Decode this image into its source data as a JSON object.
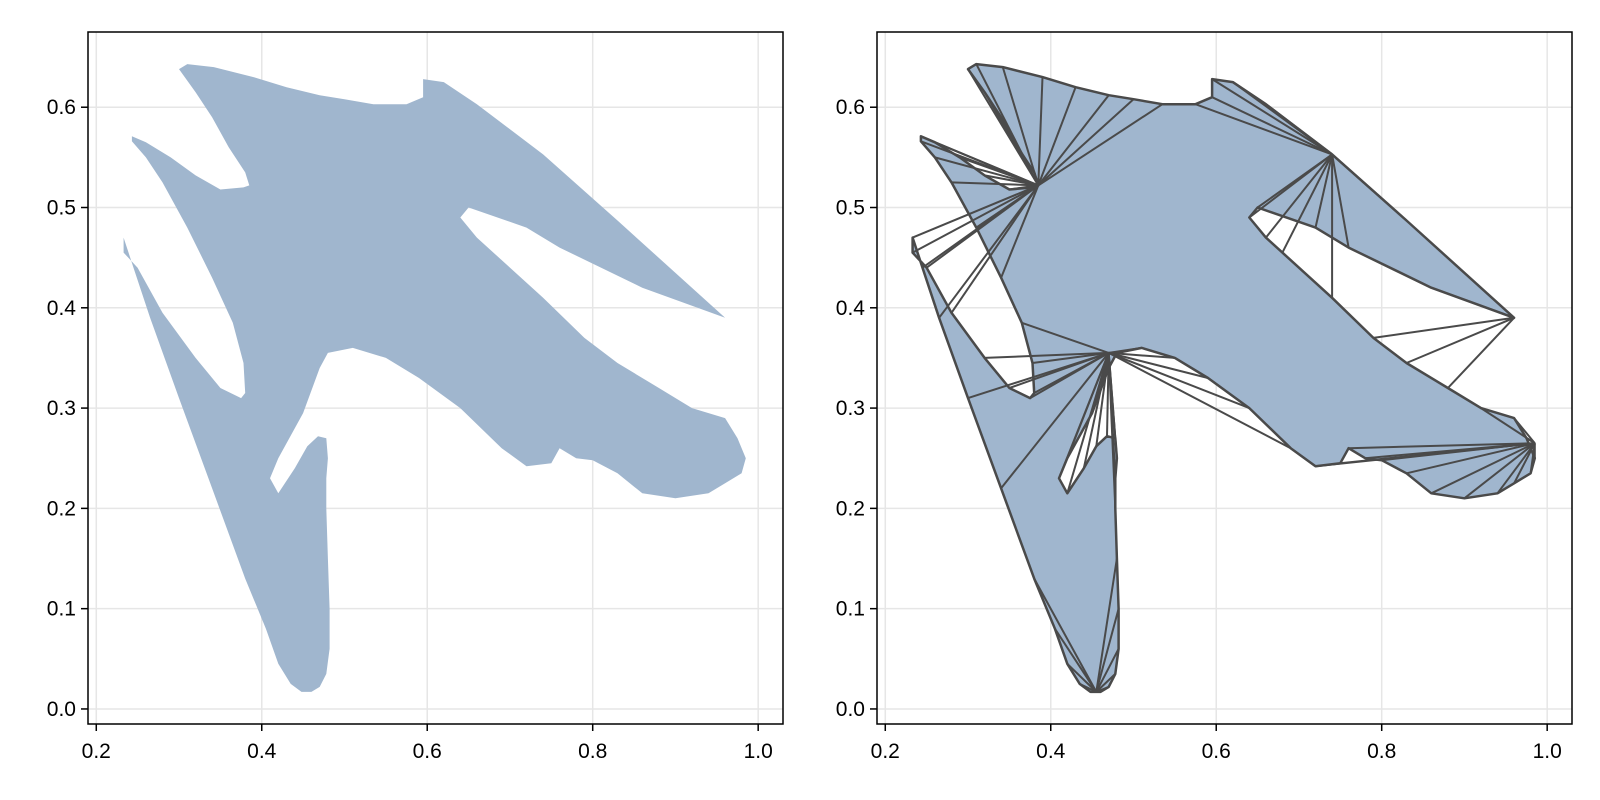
{
  "colors": {
    "fill": "#a0b6ce",
    "edge": "#4a4a4a",
    "grid": "#e6e6e6",
    "frame": "#000000"
  },
  "chart_data": [
    {
      "type": "area",
      "title": "",
      "xlabel": "",
      "ylabel": "",
      "xlim": [
        0.19,
        1.03
      ],
      "ylim": [
        -0.015,
        0.675
      ],
      "xticks": [
        0.2,
        0.4,
        0.6,
        0.8,
        1.0
      ],
      "xtick_labels": [
        "0.2",
        "0.4",
        "0.6",
        "0.8",
        "1.0"
      ],
      "yticks": [
        0.0,
        0.1,
        0.2,
        0.3,
        0.4,
        0.5,
        0.6
      ],
      "ytick_labels": [
        "0.0",
        "0.1",
        "0.2",
        "0.3",
        "0.4",
        "0.5",
        "0.6"
      ],
      "grid": true,
      "show_edges": false,
      "polygon": [
        [
          0.3,
          0.638
        ],
        [
          0.31,
          0.643
        ],
        [
          0.342,
          0.64
        ],
        [
          0.39,
          0.63
        ],
        [
          0.43,
          0.62
        ],
        [
          0.47,
          0.612
        ],
        [
          0.5,
          0.608
        ],
        [
          0.535,
          0.603
        ],
        [
          0.575,
          0.603
        ],
        [
          0.595,
          0.61
        ],
        [
          0.595,
          0.628
        ],
        [
          0.62,
          0.625
        ],
        [
          0.66,
          0.603
        ],
        [
          0.74,
          0.553
        ],
        [
          0.83,
          0.487
        ],
        [
          0.96,
          0.39
        ],
        [
          0.86,
          0.42
        ],
        [
          0.76,
          0.46
        ],
        [
          0.72,
          0.48
        ],
        [
          0.65,
          0.5
        ],
        [
          0.64,
          0.49
        ],
        [
          0.66,
          0.47
        ],
        [
          0.68,
          0.455
        ],
        [
          0.74,
          0.41
        ],
        [
          0.79,
          0.37
        ],
        [
          0.83,
          0.345
        ],
        [
          0.88,
          0.32
        ],
        [
          0.92,
          0.3
        ],
        [
          0.96,
          0.29
        ],
        [
          0.975,
          0.27
        ],
        [
          0.985,
          0.25
        ],
        [
          0.98,
          0.235
        ],
        [
          0.96,
          0.225
        ],
        [
          0.94,
          0.215
        ],
        [
          0.9,
          0.21
        ],
        [
          0.86,
          0.215
        ],
        [
          0.83,
          0.235
        ],
        [
          0.8,
          0.248
        ],
        [
          0.78,
          0.25
        ],
        [
          0.76,
          0.26
        ],
        [
          0.75,
          0.245
        ],
        [
          0.72,
          0.242
        ],
        [
          0.69,
          0.26
        ],
        [
          0.64,
          0.3
        ],
        [
          0.59,
          0.33
        ],
        [
          0.55,
          0.35
        ],
        [
          0.51,
          0.36
        ],
        [
          0.48,
          0.355
        ],
        [
          0.47,
          0.34
        ],
        [
          0.45,
          0.295
        ],
        [
          0.42,
          0.25
        ],
        [
          0.41,
          0.23
        ],
        [
          0.42,
          0.215
        ],
        [
          0.44,
          0.24
        ],
        [
          0.455,
          0.262
        ],
        [
          0.468,
          0.272
        ],
        [
          0.478,
          0.27
        ],
        [
          0.48,
          0.25
        ],
        [
          0.478,
          0.23
        ],
        [
          0.478,
          0.2
        ],
        [
          0.48,
          0.15
        ],
        [
          0.482,
          0.1
        ],
        [
          0.482,
          0.06
        ],
        [
          0.478,
          0.035
        ],
        [
          0.47,
          0.022
        ],
        [
          0.46,
          0.017
        ],
        [
          0.448,
          0.017
        ],
        [
          0.435,
          0.025
        ],
        [
          0.42,
          0.045
        ],
        [
          0.405,
          0.08
        ],
        [
          0.38,
          0.13
        ],
        [
          0.34,
          0.22
        ],
        [
          0.3,
          0.31
        ],
        [
          0.265,
          0.39
        ],
        [
          0.245,
          0.44
        ],
        [
          0.233,
          0.47
        ],
        [
          0.233,
          0.455
        ],
        [
          0.25,
          0.44
        ],
        [
          0.28,
          0.395
        ],
        [
          0.32,
          0.35
        ],
        [
          0.35,
          0.32
        ],
        [
          0.375,
          0.31
        ],
        [
          0.38,
          0.315
        ],
        [
          0.378,
          0.345
        ],
        [
          0.365,
          0.385
        ],
        [
          0.34,
          0.43
        ],
        [
          0.31,
          0.48
        ],
        [
          0.28,
          0.525
        ],
        [
          0.26,
          0.55
        ],
        [
          0.243,
          0.566
        ],
        [
          0.243,
          0.571
        ],
        [
          0.26,
          0.565
        ],
        [
          0.29,
          0.55
        ],
        [
          0.32,
          0.532
        ],
        [
          0.35,
          0.518
        ],
        [
          0.378,
          0.52
        ],
        [
          0.385,
          0.522
        ],
        [
          0.38,
          0.535
        ],
        [
          0.36,
          0.56
        ],
        [
          0.34,
          0.59
        ],
        [
          0.32,
          0.615
        ]
      ]
    },
    {
      "type": "area",
      "title": "",
      "xlabel": "",
      "ylabel": "",
      "xlim": [
        0.19,
        1.03
      ],
      "ylim": [
        -0.015,
        0.675
      ],
      "xticks": [
        0.2,
        0.4,
        0.6,
        0.8,
        1.0
      ],
      "xtick_labels": [
        "0.2",
        "0.4",
        "0.6",
        "0.8",
        "1.0"
      ],
      "yticks": [
        0.0,
        0.1,
        0.2,
        0.3,
        0.4,
        0.5,
        0.6
      ],
      "ytick_labels": [
        "0.0",
        "0.1",
        "0.2",
        "0.3",
        "0.4",
        "0.5",
        "0.6"
      ],
      "grid": true,
      "show_edges": true,
      "hubs": [
        [
          0.47,
          0.355
        ],
        [
          0.455,
          0.017
        ],
        [
          0.985,
          0.265
        ],
        [
          0.96,
          0.39
        ],
        [
          0.385,
          0.522
        ],
        [
          0.74,
          0.553
        ]
      ],
      "polygon": [
        [
          0.3,
          0.638
        ],
        [
          0.31,
          0.643
        ],
        [
          0.342,
          0.64
        ],
        [
          0.39,
          0.63
        ],
        [
          0.43,
          0.62
        ],
        [
          0.47,
          0.612
        ],
        [
          0.5,
          0.608
        ],
        [
          0.535,
          0.603
        ],
        [
          0.575,
          0.603
        ],
        [
          0.595,
          0.61
        ],
        [
          0.595,
          0.628
        ],
        [
          0.62,
          0.625
        ],
        [
          0.66,
          0.603
        ],
        [
          0.74,
          0.553
        ],
        [
          0.83,
          0.487
        ],
        [
          0.96,
          0.39
        ],
        [
          0.86,
          0.42
        ],
        [
          0.76,
          0.46
        ],
        [
          0.72,
          0.48
        ],
        [
          0.65,
          0.5
        ],
        [
          0.64,
          0.49
        ],
        [
          0.66,
          0.47
        ],
        [
          0.68,
          0.455
        ],
        [
          0.74,
          0.41
        ],
        [
          0.79,
          0.37
        ],
        [
          0.83,
          0.345
        ],
        [
          0.88,
          0.32
        ],
        [
          0.92,
          0.3
        ],
        [
          0.96,
          0.29
        ],
        [
          0.975,
          0.27
        ],
        [
          0.985,
          0.25
        ],
        [
          0.98,
          0.235
        ],
        [
          0.96,
          0.225
        ],
        [
          0.94,
          0.215
        ],
        [
          0.9,
          0.21
        ],
        [
          0.86,
          0.215
        ],
        [
          0.83,
          0.235
        ],
        [
          0.8,
          0.248
        ],
        [
          0.78,
          0.25
        ],
        [
          0.76,
          0.26
        ],
        [
          0.75,
          0.245
        ],
        [
          0.72,
          0.242
        ],
        [
          0.69,
          0.26
        ],
        [
          0.64,
          0.3
        ],
        [
          0.59,
          0.33
        ],
        [
          0.55,
          0.35
        ],
        [
          0.51,
          0.36
        ],
        [
          0.48,
          0.355
        ],
        [
          0.47,
          0.34
        ],
        [
          0.45,
          0.295
        ],
        [
          0.42,
          0.25
        ],
        [
          0.41,
          0.23
        ],
        [
          0.42,
          0.215
        ],
        [
          0.44,
          0.24
        ],
        [
          0.455,
          0.262
        ],
        [
          0.468,
          0.272
        ],
        [
          0.478,
          0.27
        ],
        [
          0.48,
          0.25
        ],
        [
          0.478,
          0.23
        ],
        [
          0.478,
          0.2
        ],
        [
          0.48,
          0.15
        ],
        [
          0.482,
          0.1
        ],
        [
          0.482,
          0.06
        ],
        [
          0.478,
          0.035
        ],
        [
          0.47,
          0.022
        ],
        [
          0.46,
          0.017
        ],
        [
          0.448,
          0.017
        ],
        [
          0.435,
          0.025
        ],
        [
          0.42,
          0.045
        ],
        [
          0.405,
          0.08
        ],
        [
          0.38,
          0.13
        ],
        [
          0.34,
          0.22
        ],
        [
          0.3,
          0.31
        ],
        [
          0.265,
          0.39
        ],
        [
          0.245,
          0.44
        ],
        [
          0.233,
          0.47
        ],
        [
          0.233,
          0.455
        ],
        [
          0.25,
          0.44
        ],
        [
          0.28,
          0.395
        ],
        [
          0.32,
          0.35
        ],
        [
          0.35,
          0.32
        ],
        [
          0.375,
          0.31
        ],
        [
          0.38,
          0.315
        ],
        [
          0.378,
          0.345
        ],
        [
          0.365,
          0.385
        ],
        [
          0.34,
          0.43
        ],
        [
          0.31,
          0.48
        ],
        [
          0.28,
          0.525
        ],
        [
          0.26,
          0.55
        ],
        [
          0.243,
          0.566
        ],
        [
          0.243,
          0.571
        ],
        [
          0.26,
          0.565
        ],
        [
          0.29,
          0.55
        ],
        [
          0.32,
          0.532
        ],
        [
          0.35,
          0.518
        ],
        [
          0.378,
          0.52
        ],
        [
          0.385,
          0.522
        ],
        [
          0.38,
          0.535
        ],
        [
          0.36,
          0.56
        ],
        [
          0.34,
          0.59
        ],
        [
          0.32,
          0.615
        ]
      ]
    }
  ]
}
